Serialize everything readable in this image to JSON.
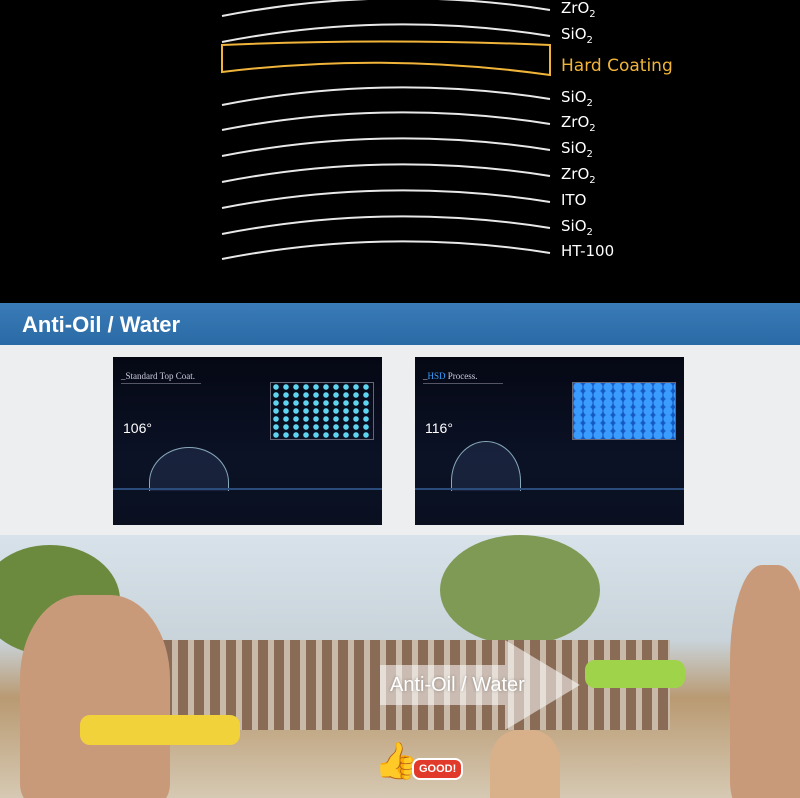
{
  "layers": {
    "items": [
      {
        "label": "ZrO",
        "sub": "2"
      },
      {
        "label": "SiO",
        "sub": "2"
      },
      {
        "label": "Hard Coating",
        "sub": ""
      },
      {
        "label": "SiO",
        "sub": "2"
      },
      {
        "label": "ZrO",
        "sub": "2"
      },
      {
        "label": "SiO",
        "sub": "2"
      },
      {
        "label": "ZrO",
        "sub": "2"
      },
      {
        "label": "ITO",
        "sub": ""
      },
      {
        "label": "SiO",
        "sub": "2"
      },
      {
        "label": "HT-100",
        "sub": ""
      }
    ],
    "highlight_color": "#f0b43a"
  },
  "section": {
    "title": "Anti-Oil / Water",
    "bar_color": "#2f71ad"
  },
  "comparison": {
    "left": {
      "caption": "_Standard Top Coat.",
      "angle": "106°"
    },
    "right": {
      "caption_prefix": "_",
      "caption_highlight": "HSD",
      "caption_suffix": " Process.",
      "angle": "116°"
    }
  },
  "photo": {
    "slogan": "Anti-Oil / Water",
    "badge": "GOOD!"
  }
}
